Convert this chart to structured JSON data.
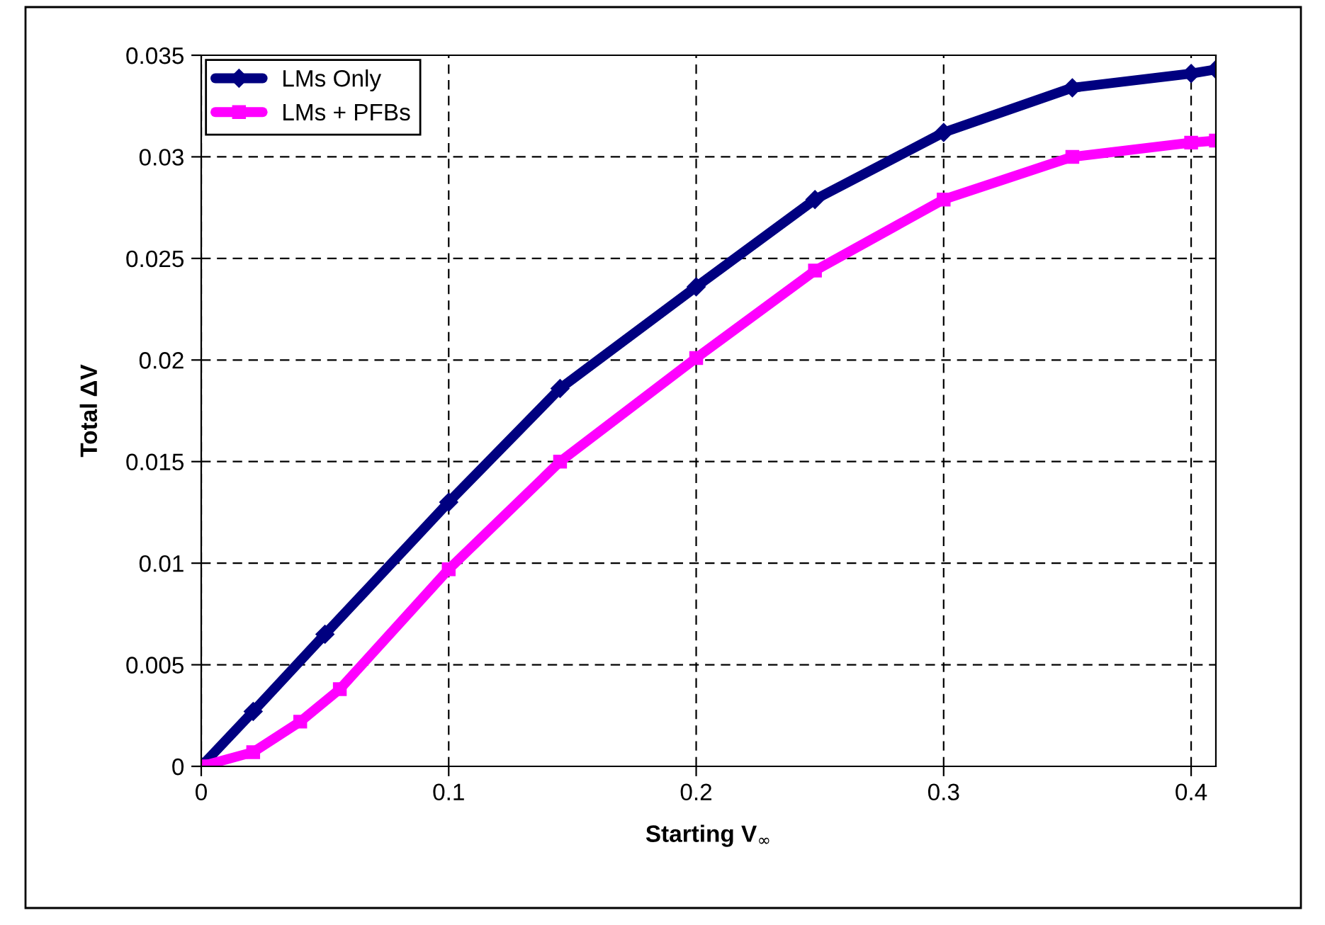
{
  "chart_data": {
    "type": "line",
    "xlabel": "Starting V$_{∞}$",
    "ylabel": "Total ΔV",
    "xlim": [
      0,
      0.41
    ],
    "xticks": [
      0,
      0.1,
      0.2,
      0.3,
      0.4
    ],
    "ylim": [
      0,
      0.035
    ],
    "yticks": [
      0,
      0.005,
      0.01,
      0.015,
      0.02,
      0.025,
      0.03,
      0.035
    ],
    "grid": true,
    "legend": "top left",
    "series": [
      {
        "name": "LMs Only",
        "color": "#000080",
        "marker": "diamond",
        "x": [
          0,
          0.021,
          0.05,
          0.1,
          0.145,
          0.2,
          0.248,
          0.3,
          0.352,
          0.4,
          0.41
        ],
        "values": [
          0,
          0.0027,
          0.0065,
          0.013,
          0.0186,
          0.0236,
          0.0279,
          0.0312,
          0.0334,
          0.0341,
          0.0343
        ]
      },
      {
        "name": "LMs + PFBs",
        "color": "#ff00ff",
        "marker": "square",
        "x": [
          0,
          0.021,
          0.04,
          0.056,
          0.1,
          0.145,
          0.2,
          0.248,
          0.3,
          0.352,
          0.4,
          0.41
        ],
        "values": [
          0,
          0.0007,
          0.0022,
          0.0038,
          0.0097,
          0.015,
          0.0201,
          0.0244,
          0.0279,
          0.03,
          0.0307,
          0.0308
        ]
      }
    ]
  }
}
